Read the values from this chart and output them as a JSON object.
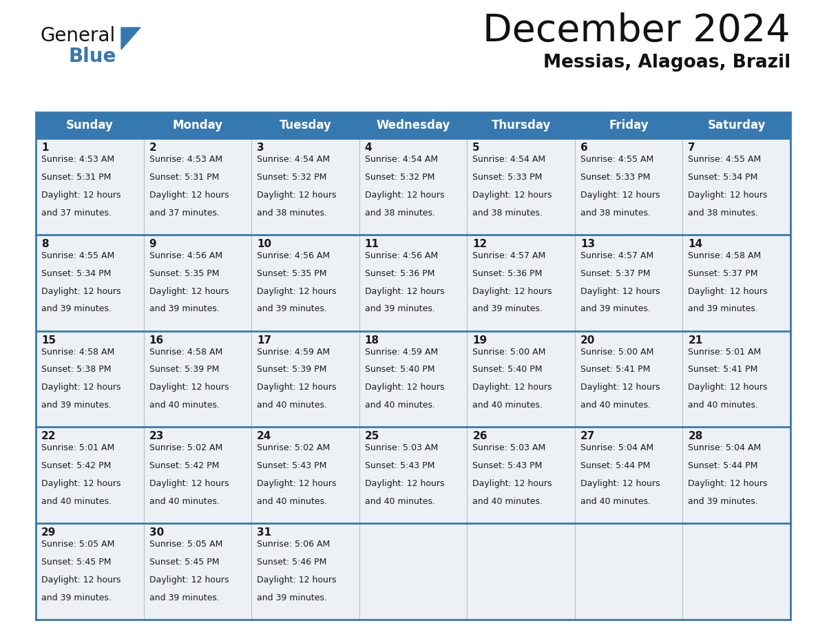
{
  "title": "December 2024",
  "subtitle": "Messias, Alagoas, Brazil",
  "header_color": "#3679b0",
  "header_text_color": "#ffffff",
  "cell_bg": "#edf1f5",
  "border_color": "#3679b0",
  "text_color": "#1a1a1a",
  "days_of_week": [
    "Sunday",
    "Monday",
    "Tuesday",
    "Wednesday",
    "Thursday",
    "Friday",
    "Saturday"
  ],
  "calendar_data": [
    [
      {
        "day": "1",
        "sunrise": "4:53 AM",
        "sunset": "5:31 PM",
        "dl1": "Daylight: 12 hours",
        "dl2": "and 37 minutes."
      },
      {
        "day": "2",
        "sunrise": "4:53 AM",
        "sunset": "5:31 PM",
        "dl1": "Daylight: 12 hours",
        "dl2": "and 37 minutes."
      },
      {
        "day": "3",
        "sunrise": "4:54 AM",
        "sunset": "5:32 PM",
        "dl1": "Daylight: 12 hours",
        "dl2": "and 38 minutes."
      },
      {
        "day": "4",
        "sunrise": "4:54 AM",
        "sunset": "5:32 PM",
        "dl1": "Daylight: 12 hours",
        "dl2": "and 38 minutes."
      },
      {
        "day": "5",
        "sunrise": "4:54 AM",
        "sunset": "5:33 PM",
        "dl1": "Daylight: 12 hours",
        "dl2": "and 38 minutes."
      },
      {
        "day": "6",
        "sunrise": "4:55 AM",
        "sunset": "5:33 PM",
        "dl1": "Daylight: 12 hours",
        "dl2": "and 38 minutes."
      },
      {
        "day": "7",
        "sunrise": "4:55 AM",
        "sunset": "5:34 PM",
        "dl1": "Daylight: 12 hours",
        "dl2": "and 38 minutes."
      }
    ],
    [
      {
        "day": "8",
        "sunrise": "4:55 AM",
        "sunset": "5:34 PM",
        "dl1": "Daylight: 12 hours",
        "dl2": "and 39 minutes."
      },
      {
        "day": "9",
        "sunrise": "4:56 AM",
        "sunset": "5:35 PM",
        "dl1": "Daylight: 12 hours",
        "dl2": "and 39 minutes."
      },
      {
        "day": "10",
        "sunrise": "4:56 AM",
        "sunset": "5:35 PM",
        "dl1": "Daylight: 12 hours",
        "dl2": "and 39 minutes."
      },
      {
        "day": "11",
        "sunrise": "4:56 AM",
        "sunset": "5:36 PM",
        "dl1": "Daylight: 12 hours",
        "dl2": "and 39 minutes."
      },
      {
        "day": "12",
        "sunrise": "4:57 AM",
        "sunset": "5:36 PM",
        "dl1": "Daylight: 12 hours",
        "dl2": "and 39 minutes."
      },
      {
        "day": "13",
        "sunrise": "4:57 AM",
        "sunset": "5:37 PM",
        "dl1": "Daylight: 12 hours",
        "dl2": "and 39 minutes."
      },
      {
        "day": "14",
        "sunrise": "4:58 AM",
        "sunset": "5:37 PM",
        "dl1": "Daylight: 12 hours",
        "dl2": "and 39 minutes."
      }
    ],
    [
      {
        "day": "15",
        "sunrise": "4:58 AM",
        "sunset": "5:38 PM",
        "dl1": "Daylight: 12 hours",
        "dl2": "and 39 minutes."
      },
      {
        "day": "16",
        "sunrise": "4:58 AM",
        "sunset": "5:39 PM",
        "dl1": "Daylight: 12 hours",
        "dl2": "and 40 minutes."
      },
      {
        "day": "17",
        "sunrise": "4:59 AM",
        "sunset": "5:39 PM",
        "dl1": "Daylight: 12 hours",
        "dl2": "and 40 minutes."
      },
      {
        "day": "18",
        "sunrise": "4:59 AM",
        "sunset": "5:40 PM",
        "dl1": "Daylight: 12 hours",
        "dl2": "and 40 minutes."
      },
      {
        "day": "19",
        "sunrise": "5:00 AM",
        "sunset": "5:40 PM",
        "dl1": "Daylight: 12 hours",
        "dl2": "and 40 minutes."
      },
      {
        "day": "20",
        "sunrise": "5:00 AM",
        "sunset": "5:41 PM",
        "dl1": "Daylight: 12 hours",
        "dl2": "and 40 minutes."
      },
      {
        "day": "21",
        "sunrise": "5:01 AM",
        "sunset": "5:41 PM",
        "dl1": "Daylight: 12 hours",
        "dl2": "and 40 minutes."
      }
    ],
    [
      {
        "day": "22",
        "sunrise": "5:01 AM",
        "sunset": "5:42 PM",
        "dl1": "Daylight: 12 hours",
        "dl2": "and 40 minutes."
      },
      {
        "day": "23",
        "sunrise": "5:02 AM",
        "sunset": "5:42 PM",
        "dl1": "Daylight: 12 hours",
        "dl2": "and 40 minutes."
      },
      {
        "day": "24",
        "sunrise": "5:02 AM",
        "sunset": "5:43 PM",
        "dl1": "Daylight: 12 hours",
        "dl2": "and 40 minutes."
      },
      {
        "day": "25",
        "sunrise": "5:03 AM",
        "sunset": "5:43 PM",
        "dl1": "Daylight: 12 hours",
        "dl2": "and 40 minutes."
      },
      {
        "day": "26",
        "sunrise": "5:03 AM",
        "sunset": "5:43 PM",
        "dl1": "Daylight: 12 hours",
        "dl2": "and 40 minutes."
      },
      {
        "day": "27",
        "sunrise": "5:04 AM",
        "sunset": "5:44 PM",
        "dl1": "Daylight: 12 hours",
        "dl2": "and 40 minutes."
      },
      {
        "day": "28",
        "sunrise": "5:04 AM",
        "sunset": "5:44 PM",
        "dl1": "Daylight: 12 hours",
        "dl2": "and 39 minutes."
      }
    ],
    [
      {
        "day": "29",
        "sunrise": "5:05 AM",
        "sunset": "5:45 PM",
        "dl1": "Daylight: 12 hours",
        "dl2": "and 39 minutes."
      },
      {
        "day": "30",
        "sunrise": "5:05 AM",
        "sunset": "5:45 PM",
        "dl1": "Daylight: 12 hours",
        "dl2": "and 39 minutes."
      },
      {
        "day": "31",
        "sunrise": "5:06 AM",
        "sunset": "5:46 PM",
        "dl1": "Daylight: 12 hours",
        "dl2": "and 39 minutes."
      },
      null,
      null,
      null,
      null
    ]
  ]
}
